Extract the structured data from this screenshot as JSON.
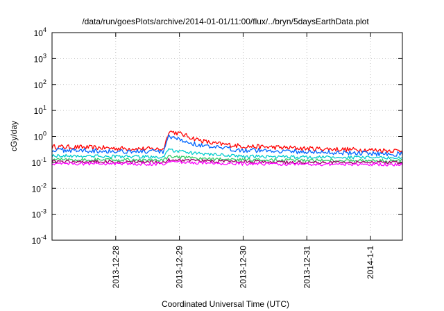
{
  "chart_data": {
    "type": "line",
    "title": "/data/run/goesPlots/archive/2014-01-01/11:00/flux/../bryn/5daysEarthData.plot",
    "xlabel": "Coordinated Universal Time (UTC)",
    "ylabel": "cGy/day",
    "y_scale": "log",
    "ylim": [
      0.0001,
      10000
    ],
    "y_ticks": [
      {
        "base": "10",
        "exp": "-4"
      },
      {
        "base": "10",
        "exp": "-3"
      },
      {
        "base": "10",
        "exp": "-2"
      },
      {
        "base": "10",
        "exp": "-1"
      },
      {
        "base": "10",
        "exp": "0"
      },
      {
        "base": "10",
        "exp": "1"
      },
      {
        "base": "10",
        "exp": "2"
      },
      {
        "base": "10",
        "exp": "3"
      },
      {
        "base": "10",
        "exp": "4"
      }
    ],
    "xlim": [
      "2013-12-27 00:00",
      "2014-01-01 12:00"
    ],
    "x_ticks": [
      "2013-12-28",
      "2013-12-29",
      "2013-12-30",
      "2013-12-31",
      "2014-1-1"
    ],
    "grid": true,
    "series": [
      {
        "color": "#ff0000",
        "values": [
          [
            "2013-12-27 00:00",
            0.4
          ],
          [
            "2013-12-27 12:00",
            0.38
          ],
          [
            "2013-12-28 00:00",
            0.35
          ],
          [
            "2013-12-28 12:00",
            0.33
          ],
          [
            "2013-12-28 18:00",
            0.32
          ],
          [
            "2013-12-28 20:00",
            1.6
          ],
          [
            "2013-12-29 00:00",
            1.3
          ],
          [
            "2013-12-29 06:00",
            0.8
          ],
          [
            "2013-12-29 12:00",
            0.55
          ],
          [
            "2013-12-30 00:00",
            0.42
          ],
          [
            "2013-12-30 12:00",
            0.38
          ],
          [
            "2013-12-31 00:00",
            0.34
          ],
          [
            "2013-12-31 12:00",
            0.32
          ],
          [
            "2014-01-01 00:00",
            0.3
          ],
          [
            "2014-01-01 12:00",
            0.28
          ]
        ]
      },
      {
        "color": "#0066ff",
        "values": [
          [
            "2013-12-27 00:00",
            0.3
          ],
          [
            "2013-12-27 12:00",
            0.29
          ],
          [
            "2013-12-28 00:00",
            0.27
          ],
          [
            "2013-12-28 12:00",
            0.26
          ],
          [
            "2013-12-28 18:00",
            0.25
          ],
          [
            "2013-12-28 20:00",
            0.95
          ],
          [
            "2013-12-29 00:00",
            0.75
          ],
          [
            "2013-12-29 06:00",
            0.5
          ],
          [
            "2013-12-29 12:00",
            0.38
          ],
          [
            "2013-12-30 00:00",
            0.3
          ],
          [
            "2013-12-30 12:00",
            0.28
          ],
          [
            "2013-12-31 00:00",
            0.25
          ],
          [
            "2013-12-31 12:00",
            0.24
          ],
          [
            "2014-01-01 00:00",
            0.22
          ],
          [
            "2014-01-01 12:00",
            0.21
          ]
        ]
      },
      {
        "color": "#00cccc",
        "values": [
          [
            "2013-12-27 00:00",
            0.18
          ],
          [
            "2013-12-28 00:00",
            0.17
          ],
          [
            "2013-12-28 18:00",
            0.16
          ],
          [
            "2013-12-28 20:00",
            0.3
          ],
          [
            "2013-12-29 06:00",
            0.22
          ],
          [
            "2013-12-30 00:00",
            0.17
          ],
          [
            "2013-12-31 00:00",
            0.16
          ],
          [
            "2014-01-01 12:00",
            0.15
          ]
        ]
      },
      {
        "color": "#33cc66",
        "values": [
          [
            "2013-12-27 00:00",
            0.13
          ],
          [
            "2013-12-28 00:00",
            0.125
          ],
          [
            "2013-12-28 18:00",
            0.12
          ],
          [
            "2013-12-28 20:00",
            0.17
          ],
          [
            "2013-12-29 06:00",
            0.14
          ],
          [
            "2013-12-30 00:00",
            0.125
          ],
          [
            "2013-12-31 00:00",
            0.12
          ],
          [
            "2014-01-01 12:00",
            0.115
          ]
        ]
      },
      {
        "color": "#990066",
        "values": [
          [
            "2013-12-27 00:00",
            0.11
          ],
          [
            "2013-12-28 00:00",
            0.105
          ],
          [
            "2013-12-28 18:00",
            0.1
          ],
          [
            "2013-12-28 20:00",
            0.13
          ],
          [
            "2013-12-29 06:00",
            0.115
          ],
          [
            "2013-12-30 00:00",
            0.105
          ],
          [
            "2013-12-31 00:00",
            0.1
          ],
          [
            "2014-01-01 12:00",
            0.1
          ]
        ]
      },
      {
        "color": "#ff00ff",
        "values": [
          [
            "2013-12-27 00:00",
            0.09
          ],
          [
            "2013-12-28 00:00",
            0.088
          ],
          [
            "2013-12-28 18:00",
            0.085
          ],
          [
            "2013-12-28 20:00",
            0.11
          ],
          [
            "2013-12-29 06:00",
            0.095
          ],
          [
            "2013-12-30 00:00",
            0.088
          ],
          [
            "2013-12-31 00:00",
            0.085
          ],
          [
            "2014-01-01 12:00",
            0.083
          ]
        ]
      }
    ]
  }
}
